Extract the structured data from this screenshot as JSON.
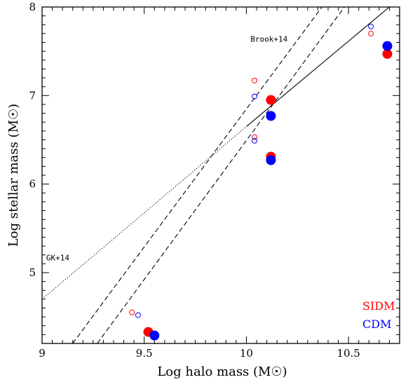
{
  "chart_data": {
    "type": "scatter",
    "title": "",
    "xlabel": "Log halo mass (M☉)",
    "ylabel": "Log stellar mass  (M☉)",
    "xlim": [
      9.0,
      10.75
    ],
    "ylim": [
      4.2,
      8.0
    ],
    "xticks": [
      "9",
      "9.5",
      "10",
      "10.5"
    ],
    "xtick_values": [
      9,
      9.5,
      10,
      10.5
    ],
    "yticks": [
      "5",
      "6",
      "7",
      "8"
    ],
    "ytick_values": [
      5,
      6,
      7,
      8
    ],
    "grid": false,
    "legend": "bottom-right",
    "series": [
      {
        "name": "SIDM",
        "color": "#ff0000",
        "filled": [
          [
            9.52,
            4.33
          ],
          [
            10.12,
            6.95
          ],
          [
            10.12,
            6.31
          ],
          [
            10.69,
            7.47
          ]
        ],
        "open": [
          [
            9.44,
            4.55
          ],
          [
            10.04,
            7.17
          ],
          [
            10.04,
            6.53
          ],
          [
            10.61,
            7.7
          ]
        ]
      },
      {
        "name": "CDM",
        "color": "#0000ff",
        "filled": [
          [
            9.55,
            4.29
          ],
          [
            10.12,
            6.77
          ],
          [
            10.12,
            6.27
          ],
          [
            10.69,
            7.56
          ]
        ],
        "open": [
          [
            9.47,
            4.52
          ],
          [
            10.04,
            6.99
          ],
          [
            10.04,
            6.49
          ],
          [
            10.61,
            7.78
          ]
        ]
      }
    ],
    "lines": [
      {
        "label": "Brook+14",
        "style": "solid",
        "points": [
          [
            10.0,
            6.65
          ],
          [
            10.7,
            8.0
          ]
        ]
      },
      {
        "label": "",
        "style": "dashed",
        "points": [
          [
            9.15,
            4.2
          ],
          [
            10.37,
            8.0
          ]
        ]
      },
      {
        "label": "",
        "style": "dashed",
        "points": [
          [
            9.27,
            4.2
          ],
          [
            10.48,
            8.0
          ]
        ]
      },
      {
        "label": "GK+14",
        "style": "dotted",
        "points": [
          [
            9.0,
            4.7
          ],
          [
            10.0,
            6.65
          ]
        ]
      }
    ],
    "annotations": [
      {
        "text": "Brook+14",
        "x": 10.02,
        "y": 7.61
      },
      {
        "text": "GK+14",
        "x": 9.02,
        "y": 5.14
      }
    ]
  }
}
